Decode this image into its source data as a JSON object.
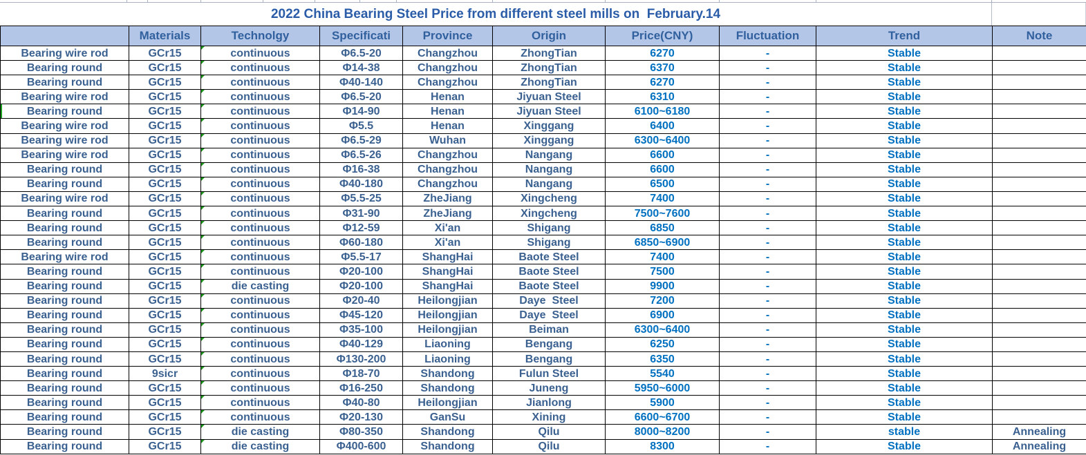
{
  "title": "2022 China Bearing Steel Price from different steel mills on  February.14",
  "columns": [
    "",
    "Materials",
    "Technolgy",
    "Specificati",
    "Province",
    "Origin",
    "Price(CNY)",
    "Fluctuation",
    "Trend",
    "Note"
  ],
  "rows": [
    {
      "type": "Bearing wire rod",
      "material": "GCr15",
      "technology": "continuous",
      "spec": "Φ6.5-20",
      "province": "Changzhou",
      "origin": "ZhongTian",
      "price": "6270",
      "fluctuation": "-",
      "trend": "Stable",
      "note": ""
    },
    {
      "type": "Bearing round",
      "material": "GCr15",
      "technology": "continuous",
      "spec": "Φ14-38",
      "province": "Changzhou",
      "origin": "ZhongTian",
      "price": "6370",
      "fluctuation": "-",
      "trend": "Stable",
      "note": ""
    },
    {
      "type": "Bearing round",
      "material": "GCr15",
      "technology": "continuous",
      "spec": "Φ40-140",
      "province": "Changzhou",
      "origin": "ZhongTian",
      "price": "6270",
      "fluctuation": "-",
      "trend": "Stable",
      "note": ""
    },
    {
      "type": "Bearing wire rod",
      "material": "GCr15",
      "technology": "continuous",
      "spec": "Φ6.5-20",
      "province": "Henan",
      "origin": "Jiyuan Steel",
      "price": "6310",
      "fluctuation": "-",
      "trend": "Stable",
      "note": ""
    },
    {
      "type": "Bearing round",
      "material": "GCr15",
      "technology": "continuous",
      "spec": "Φ14-90",
      "province": "Henan",
      "origin": "Jiyuan Steel",
      "price": "6100~6180",
      "fluctuation": "-",
      "trend": "Stable",
      "note": ""
    },
    {
      "type": "Bearing wire rod",
      "material": "GCr15",
      "technology": "continuous",
      "spec": "Φ5.5",
      "province": "Henan",
      "origin": "Xinggang",
      "price": "6400",
      "fluctuation": "-",
      "trend": "Stable",
      "note": ""
    },
    {
      "type": "Bearing wire rod",
      "material": "GCr15",
      "technology": "continuous",
      "spec": "Φ6.5-29",
      "province": "Wuhan",
      "origin": "Xinggang",
      "price": "6300~6400",
      "fluctuation": "-",
      "trend": "Stable",
      "note": ""
    },
    {
      "type": "Bearing wire rod",
      "material": "GCr15",
      "technology": "continuous",
      "spec": "Φ6.5-26",
      "province": "Changzhou",
      "origin": "Nangang",
      "price": "6600",
      "fluctuation": "-",
      "trend": "Stable",
      "note": ""
    },
    {
      "type": "Bearing round",
      "material": "GCr15",
      "technology": "continuous",
      "spec": "Φ16-38",
      "province": "Changzhou",
      "origin": "Nangang",
      "price": "6600",
      "fluctuation": "-",
      "trend": "Stable",
      "note": ""
    },
    {
      "type": "Bearing round",
      "material": "GCr15",
      "technology": "continuous",
      "spec": "Φ40-180",
      "province": "Changzhou",
      "origin": "Nangang",
      "price": "6500",
      "fluctuation": "-",
      "trend": "Stable",
      "note": ""
    },
    {
      "type": "Bearing wire rod",
      "material": "GCr15",
      "technology": "continuous",
      "spec": "Φ5.5-25",
      "province": "ZheJiang",
      "origin": "Xingcheng",
      "price": "7400",
      "fluctuation": "-",
      "trend": "Stable",
      "note": ""
    },
    {
      "type": "Bearing round",
      "material": "GCr15",
      "technology": "continuous",
      "spec": "Φ31-90",
      "province": "ZheJiang",
      "origin": "Xingcheng",
      "price": "7500~7600",
      "fluctuation": "-",
      "trend": "Stable",
      "note": ""
    },
    {
      "type": "Bearing round",
      "material": "GCr15",
      "technology": "continuous",
      "spec": "Φ12-59",
      "province": "Xi'an",
      "origin": "Shigang",
      "price": "6850",
      "fluctuation": "-",
      "trend": "Stable",
      "note": ""
    },
    {
      "type": "Bearing round",
      "material": "GCr15",
      "technology": "continuous",
      "spec": "Φ60-180",
      "province": "Xi'an",
      "origin": "Shigang",
      "price": "6850~6900",
      "fluctuation": "-",
      "trend": "Stable",
      "note": ""
    },
    {
      "type": "Bearing wire rod",
      "material": "GCr15",
      "technology": "continuous",
      "spec": "Φ5.5-17",
      "province": "ShangHai",
      "origin": "Baote Steel",
      "price": "7400",
      "fluctuation": "-",
      "trend": "Stable",
      "note": ""
    },
    {
      "type": "Bearing round",
      "material": "GCr15",
      "technology": "continuous",
      "spec": "Φ20-100",
      "province": "ShangHai",
      "origin": "Baote Steel",
      "price": "7500",
      "fluctuation": "-",
      "trend": "Stable",
      "note": ""
    },
    {
      "type": "Bearing round",
      "material": "GCr15",
      "technology": "die casting",
      "spec": "Φ20-100",
      "province": "ShangHai",
      "origin": "Baote Steel",
      "price": "9900",
      "fluctuation": "-",
      "trend": "Stable",
      "note": ""
    },
    {
      "type": "Bearing round",
      "material": "GCr15",
      "technology": "continuous",
      "spec": "Φ20-40",
      "province": "Heilongjian",
      "origin": "Daye  Steel",
      "price": "7200",
      "fluctuation": "-",
      "trend": "Stable",
      "note": ""
    },
    {
      "type": "Bearing round",
      "material": "GCr15",
      "technology": "continuous",
      "spec": "Φ45-120",
      "province": "Heilongjian",
      "origin": "Daye  Steel",
      "price": "6900",
      "fluctuation": "-",
      "trend": "Stable",
      "note": ""
    },
    {
      "type": "Bearing round",
      "material": "GCr15",
      "technology": "continuous",
      "spec": "Φ35-100",
      "province": "Heilongjian",
      "origin": "Beiman",
      "price": "6300~6400",
      "fluctuation": "-",
      "trend": "Stable",
      "note": ""
    },
    {
      "type": "Bearing round",
      "material": "GCr15",
      "technology": "continuous",
      "spec": "Φ40-129",
      "province": "Liaoning",
      "origin": "Bengang",
      "price": "6250",
      "fluctuation": "-",
      "trend": "Stable",
      "note": ""
    },
    {
      "type": "Bearing round",
      "material": "GCr15",
      "technology": "continuous",
      "spec": "Φ130-200",
      "province": "Liaoning",
      "origin": "Bengang",
      "price": "6350",
      "fluctuation": "-",
      "trend": "Stable",
      "note": ""
    },
    {
      "type": "Bearing round",
      "material": "9sicr",
      "technology": "continuous",
      "spec": "Φ18-70",
      "province": "Shandong",
      "origin": "Fulun Steel",
      "price": "5540",
      "fluctuation": "-",
      "trend": "Stable",
      "note": ""
    },
    {
      "type": "Bearing round",
      "material": "GCr15",
      "technology": "continuous",
      "spec": "Φ16-250",
      "province": "Shandong",
      "origin": "Juneng",
      "price": "5950~6000",
      "fluctuation": "-",
      "trend": "Stable",
      "note": ""
    },
    {
      "type": "Bearing round",
      "material": "GCr15",
      "technology": "continuous",
      "spec": "Φ40-80",
      "province": "Heilongjian",
      "origin": "Jianlong",
      "price": "5900",
      "fluctuation": "-",
      "trend": "Stable",
      "note": ""
    },
    {
      "type": "Bearing round",
      "material": "GCr15",
      "technology": "continuous",
      "spec": "Φ20-130",
      "province": "GanSu",
      "origin": "Xining",
      "price": "6600~6700",
      "fluctuation": "-",
      "trend": "Stable",
      "note": ""
    },
    {
      "type": "Bearing round",
      "material": "GCr15",
      "technology": "die casting",
      "spec": "Φ80-350",
      "province": "Shandong",
      "origin": "Qilu",
      "price": "8000~8200",
      "fluctuation": "-",
      "trend": "stable",
      "note": "Annealing"
    },
    {
      "type": "Bearing round",
      "material": "GCr15",
      "technology": "die casting",
      "spec": "Φ400-600",
      "province": "Shandong",
      "origin": "Qilu",
      "price": "8300",
      "fluctuation": "-",
      "trend": "Stable",
      "note": "Annealing"
    }
  ],
  "colors": {
    "header_bg": "#B4C6E7",
    "title_text": "#2A5CA8",
    "header_text": "#31609E",
    "body_text": "#3B6191",
    "accent_text": "#0070C0",
    "error_indicator_green": "#1F9A1F",
    "row_marker_green": "#21A121",
    "grid_border": "#000000"
  }
}
